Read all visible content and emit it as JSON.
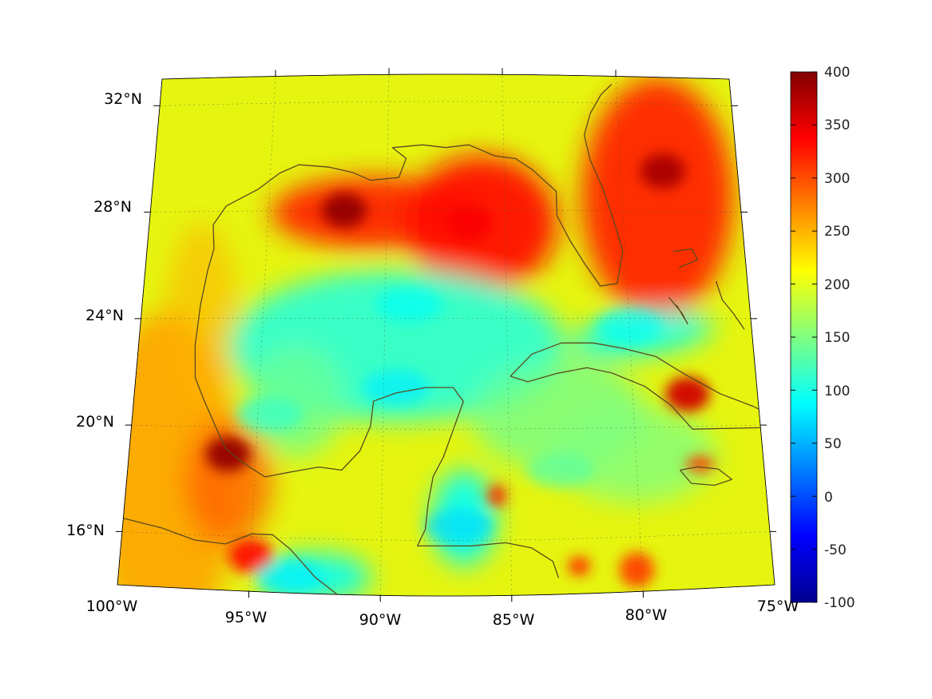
{
  "map": {
    "lat_labels": [
      "32°N",
      "28°N",
      "24°N",
      "20°N",
      "16°N"
    ],
    "lon_labels": [
      "100°W",
      "95°W",
      "90°W",
      "85°W",
      "80°W",
      "75°W"
    ],
    "extent": {
      "lon_min": -100,
      "lon_max": -75,
      "lat_min": 14,
      "lat_max": 33
    },
    "coastline_color": "#5a4a1e",
    "hotspots": [
      {
        "id": "texas-louisiana-shelf",
        "lon": -91.8,
        "lat": 28.0,
        "value": 390
      },
      {
        "id": "eastern-gulf",
        "lon": -86.5,
        "lat": 27.5,
        "value": 340
      },
      {
        "id": "atlantic-east-of-florida",
        "lon": -78.2,
        "lat": 29.5,
        "value": 380
      },
      {
        "id": "veracruz-coast",
        "lon": -96.1,
        "lat": 19.0,
        "value": 390
      },
      {
        "id": "tehuantepec",
        "lon": -95.0,
        "lat": 15.3,
        "value": 330
      },
      {
        "id": "eastern-cuba",
        "lon": -77.8,
        "lat": 21.2,
        "value": 360
      }
    ],
    "lows": [
      {
        "id": "central-gulf",
        "lon": -89.0,
        "lat": 24.5,
        "value": 90
      },
      {
        "id": "campeche-bank",
        "lon": -89.5,
        "lat": 21.5,
        "value": 80
      },
      {
        "id": "bay-of-campeche",
        "lon": -94.5,
        "lat": 20.5,
        "value": 110
      },
      {
        "id": "gulf-of-honduras",
        "lon": -87.0,
        "lat": 16.5,
        "value": 70
      },
      {
        "id": "pacific-south",
        "lon": -93.5,
        "lat": 14.6,
        "value": 80
      },
      {
        "id": "florida-straits",
        "lon": -80.0,
        "lat": 23.7,
        "value": 90
      },
      {
        "id": "caribbean-west",
        "lon": -83.0,
        "lat": 18.5,
        "value": 130
      }
    ]
  },
  "colorbar": {
    "ticks": [
      "400",
      "350",
      "300",
      "250",
      "200",
      "150",
      "100",
      "50",
      "0",
      "-50",
      "-100"
    ],
    "vmin": -100,
    "vmax": 400,
    "colormap": "jet"
  }
}
